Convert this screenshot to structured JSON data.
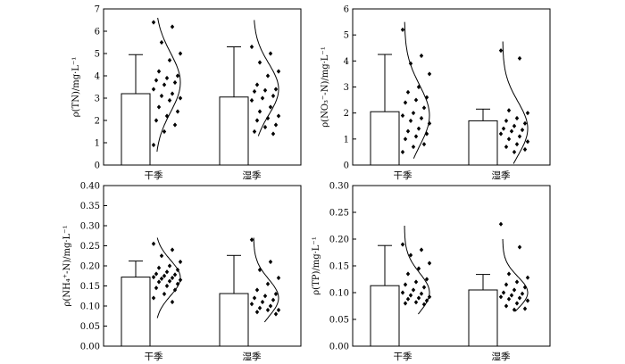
{
  "chart_data": [
    {
      "type": "bar",
      "ylabel": "ρ(TN)/mg·L⁻¹",
      "ylim": [
        0,
        7
      ],
      "yticks": [
        0,
        1,
        2,
        3,
        4,
        5,
        6,
        7
      ],
      "tick_decimals": 0,
      "categories": [
        "干季",
        "湿季"
      ],
      "values": [
        3.2,
        3.05
      ],
      "error_upper": [
        4.95,
        5.3
      ],
      "points": [
        [
          6.4,
          6.2,
          5.5,
          5.0,
          4.7,
          4.2,
          4.0,
          3.9,
          3.8,
          3.7,
          3.6,
          3.4,
          3.2,
          3.1,
          3.0,
          2.9,
          2.6,
          2.4,
          2.2,
          2.0,
          1.8,
          1.5,
          0.9
        ],
        [
          5.3,
          5.0,
          4.6,
          4.2,
          4.0,
          3.6,
          3.4,
          3.35,
          3.3,
          3.1,
          3.0,
          2.9,
          2.6,
          2.4,
          2.2,
          2.1,
          2.0,
          1.8,
          1.7,
          1.5,
          1.4
        ]
      ],
      "curve": [
        {
          "min": 0.6,
          "max": 6.6,
          "mean": 3.7
        },
        {
          "min": 1.3,
          "max": 6.5,
          "mean": 3.4
        }
      ]
    },
    {
      "type": "bar",
      "ylabel": "ρ(NO₃⁻-N)/mg·L⁻¹",
      "ylim": [
        0,
        6
      ],
      "yticks": [
        0,
        1,
        2,
        3,
        4,
        5,
        6
      ],
      "tick_decimals": 0,
      "categories": [
        "干季",
        "湿季"
      ],
      "values": [
        2.05,
        1.7
      ],
      "error_upper": [
        4.25,
        2.15
      ],
      "points": [
        [
          5.2,
          4.2,
          3.9,
          3.5,
          3.0,
          2.8,
          2.6,
          2.5,
          2.4,
          2.2,
          2.0,
          1.9,
          1.8,
          1.7,
          1.6,
          1.4,
          1.3,
          1.2,
          1.1,
          1.0,
          0.8,
          0.7,
          0.5
        ],
        [
          4.4,
          4.1,
          2.1,
          2.0,
          1.8,
          1.7,
          1.6,
          1.5,
          1.4,
          1.35,
          1.3,
          1.2,
          1.1,
          1.0,
          0.9,
          0.8,
          0.7,
          0.6,
          0.5
        ]
      ],
      "curve": [
        {
          "min": 0.25,
          "max": 5.5,
          "mean": 1.9
        },
        {
          "min": 0.05,
          "max": 4.75,
          "mean": 1.4
        }
      ]
    },
    {
      "type": "bar",
      "ylabel": "ρ(NH₄⁺-N)/mg·L⁻¹",
      "ylim": [
        0,
        0.4
      ],
      "yticks": [
        0,
        0.05,
        0.1,
        0.15,
        0.2,
        0.25,
        0.3,
        0.35,
        0.4
      ],
      "tick_decimals": 2,
      "categories": [
        "干季",
        "湿季"
      ],
      "values": [
        0.172,
        0.131
      ],
      "error_upper": [
        0.212,
        0.226
      ],
      "points": [
        [
          0.255,
          0.24,
          0.225,
          0.21,
          0.2,
          0.195,
          0.19,
          0.185,
          0.18,
          0.178,
          0.175,
          0.172,
          0.17,
          0.168,
          0.165,
          0.162,
          0.16,
          0.155,
          0.15,
          0.145,
          0.14,
          0.13,
          0.12,
          0.11
        ],
        [
          0.265,
          0.21,
          0.19,
          0.17,
          0.155,
          0.14,
          0.13,
          0.125,
          0.12,
          0.115,
          0.11,
          0.105,
          0.1,
          0.095,
          0.09,
          0.09,
          0.085,
          0.08
        ]
      ],
      "curve": [
        {
          "min": 0.07,
          "max": 0.27,
          "mean": 0.17
        },
        {
          "min": 0.06,
          "max": 0.27,
          "mean": 0.12
        }
      ]
    },
    {
      "type": "bar",
      "ylabel": "ρ(TP)/mg·L⁻¹",
      "ylim": [
        0,
        0.3
      ],
      "yticks": [
        0,
        0.05,
        0.1,
        0.15,
        0.2,
        0.25,
        0.3
      ],
      "tick_decimals": 2,
      "categories": [
        "干季",
        "湿季"
      ],
      "values": [
        0.113,
        0.105
      ],
      "error_upper": [
        0.188,
        0.134
      ],
      "points": [
        [
          0.19,
          0.18,
          0.17,
          0.155,
          0.145,
          0.135,
          0.125,
          0.12,
          0.115,
          0.11,
          0.105,
          0.1,
          0.098,
          0.095,
          0.092,
          0.09,
          0.088,
          0.085,
          0.082,
          0.08,
          0.078
        ],
        [
          0.228,
          0.185,
          0.135,
          0.128,
          0.12,
          0.115,
          0.11,
          0.105,
          0.1,
          0.098,
          0.095,
          0.092,
          0.09,
          0.088,
          0.085,
          0.08,
          0.075,
          0.07,
          0.068
        ]
      ],
      "curve": [
        {
          "min": 0.06,
          "max": 0.225,
          "mean": 0.1
        },
        {
          "min": 0.065,
          "max": 0.2,
          "mean": 0.1
        }
      ]
    }
  ]
}
